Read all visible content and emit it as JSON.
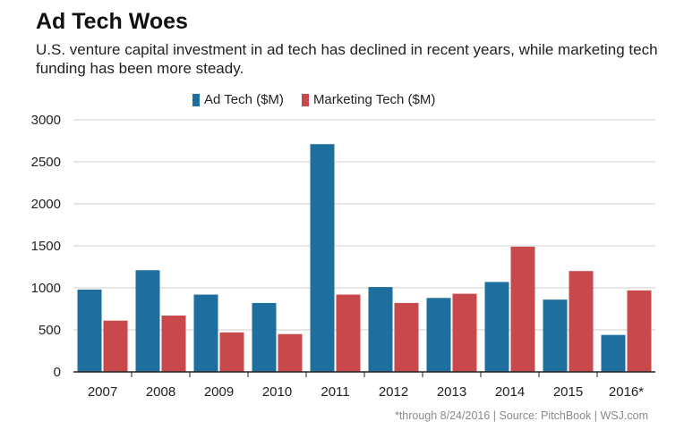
{
  "title": "Ad Tech Woes",
  "subtitle": "U.S. venture capital investment in ad tech has declined in recent years, while marketing tech funding has been more steady.",
  "footnote": "*through 8/24/2016  |  Source: PitchBook  |  WSJ.com",
  "colors": {
    "ad_tech": "#1f6f9e",
    "marketing_tech": "#c8494b",
    "grid": "#cfcfcf"
  },
  "chart_data": {
    "type": "bar",
    "categories": [
      "2007",
      "2008",
      "2009",
      "2010",
      "2011",
      "2012",
      "2013",
      "2014",
      "2015",
      "2016*"
    ],
    "series": [
      {
        "name": "Ad Tech ($M)",
        "values": [
          980,
          1210,
          920,
          820,
          2710,
          1010,
          880,
          1070,
          860,
          440
        ]
      },
      {
        "name": "Marketing Tech ($M)",
        "values": [
          610,
          670,
          470,
          450,
          920,
          820,
          930,
          1490,
          1200,
          970
        ]
      }
    ],
    "ylim": [
      0,
      3000
    ],
    "yticks": [
      "0",
      "500",
      "1000",
      "1500",
      "2000",
      "2500",
      "3000"
    ],
    "grid": true,
    "legend_position": "top"
  }
}
